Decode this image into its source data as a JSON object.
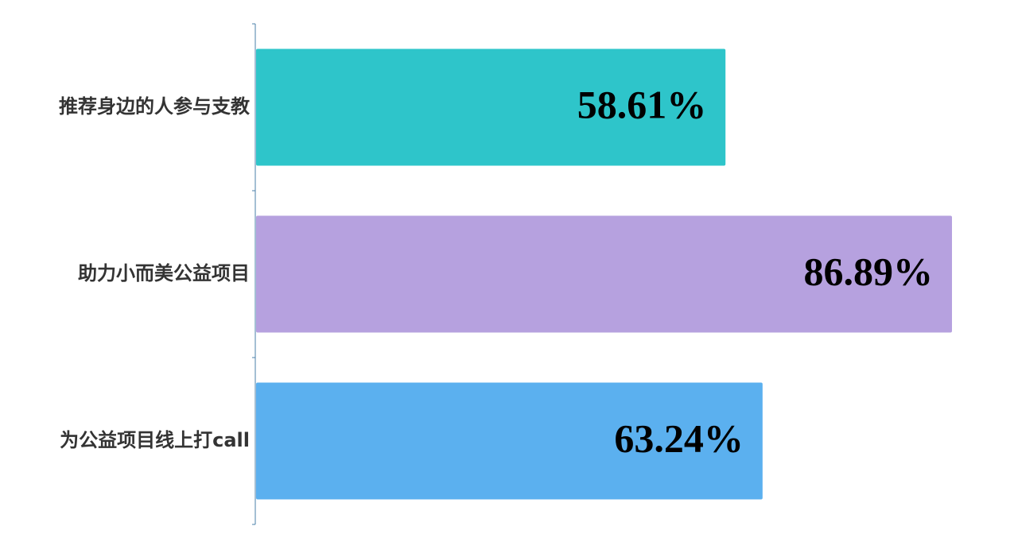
{
  "chart_data": {
    "type": "barh",
    "categories": [
      "推荐身边的人参与支教",
      "助力小而美公益项目",
      "为公益项目线上打call"
    ],
    "values": [
      58.61,
      86.89,
      63.24
    ],
    "value_labels": [
      "58.61%",
      "86.89%",
      "63.24%"
    ],
    "colors": [
      "#2ec5ca",
      "#b6a1df",
      "#5bb0ef"
    ],
    "xlim": [
      0,
      100
    ]
  }
}
